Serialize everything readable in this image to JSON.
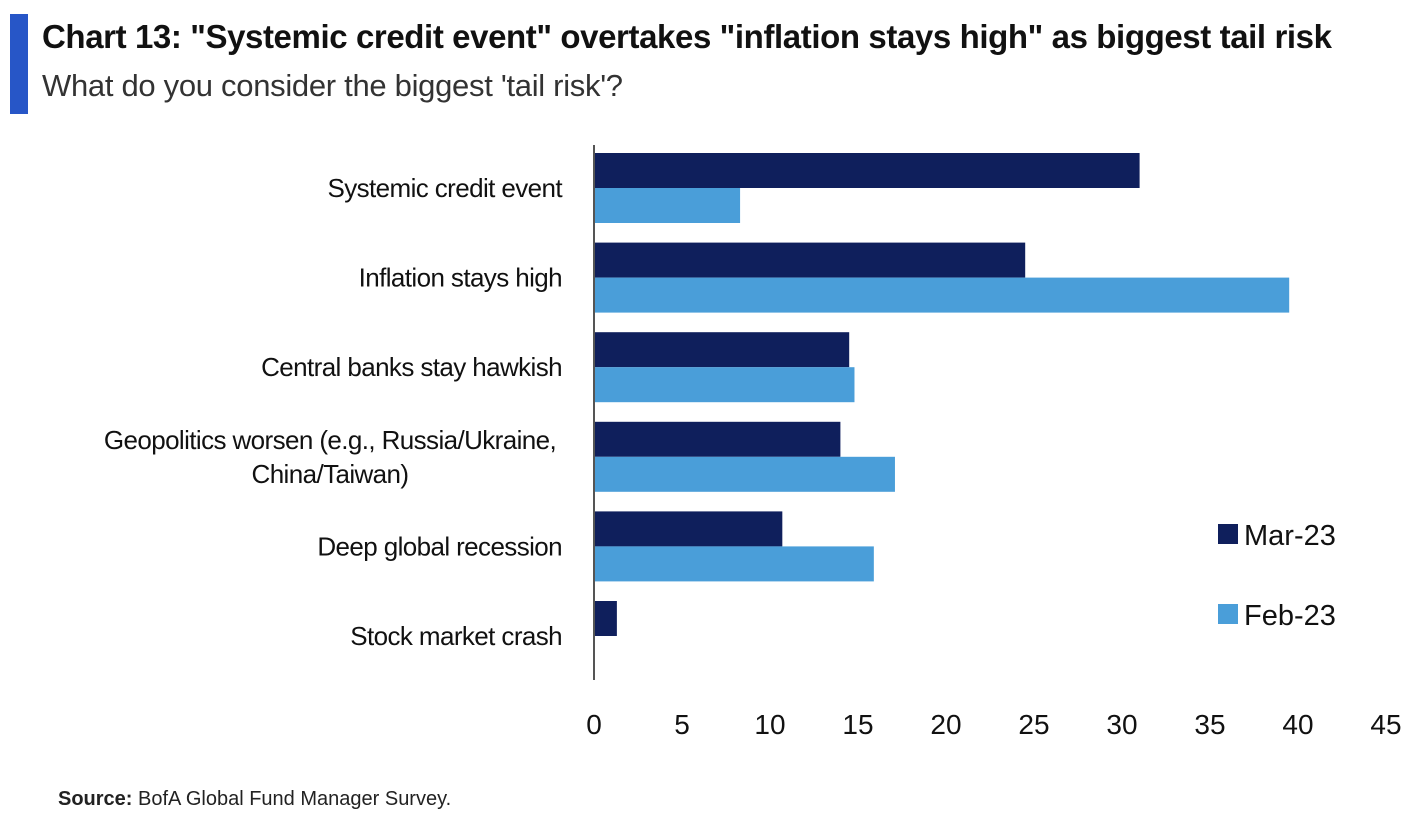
{
  "header": {
    "title": "Chart 13: \"Systemic credit event\" overtakes \"inflation stays high\" as biggest tail risk",
    "subtitle": "What do you consider the biggest 'tail risk'?",
    "accent_color": "#2756c7"
  },
  "footer": {
    "source_label": "Source:",
    "source_text": "BofA Global Fund Manager Survey."
  },
  "chart_data": {
    "type": "bar",
    "orientation": "horizontal",
    "title": "",
    "xlabel": "",
    "ylabel": "",
    "categories": [
      [
        "Systemic credit event"
      ],
      [
        "Inflation stays high"
      ],
      [
        "Central banks stay hawkish"
      ],
      [
        "Geopolitics worsen (e.g., Russia/Ukraine,",
        "China/Taiwan)"
      ],
      [
        "Deep global recession"
      ],
      [
        "Stock market crash"
      ]
    ],
    "series": [
      {
        "name": "Mar-23",
        "color": "#0f1f5c",
        "values": [
          31,
          24.5,
          14.5,
          14,
          10.7,
          1.3
        ]
      },
      {
        "name": "Feb-23",
        "color": "#4a9ed9",
        "values": [
          8.3,
          39.5,
          14.8,
          17.1,
          15.9,
          0
        ]
      }
    ],
    "xlim": [
      0,
      45
    ],
    "xticks": [
      "0",
      "5",
      "10",
      "15",
      "20",
      "25",
      "30",
      "35",
      "40",
      "45"
    ],
    "grid": false,
    "legend_position": "right"
  }
}
